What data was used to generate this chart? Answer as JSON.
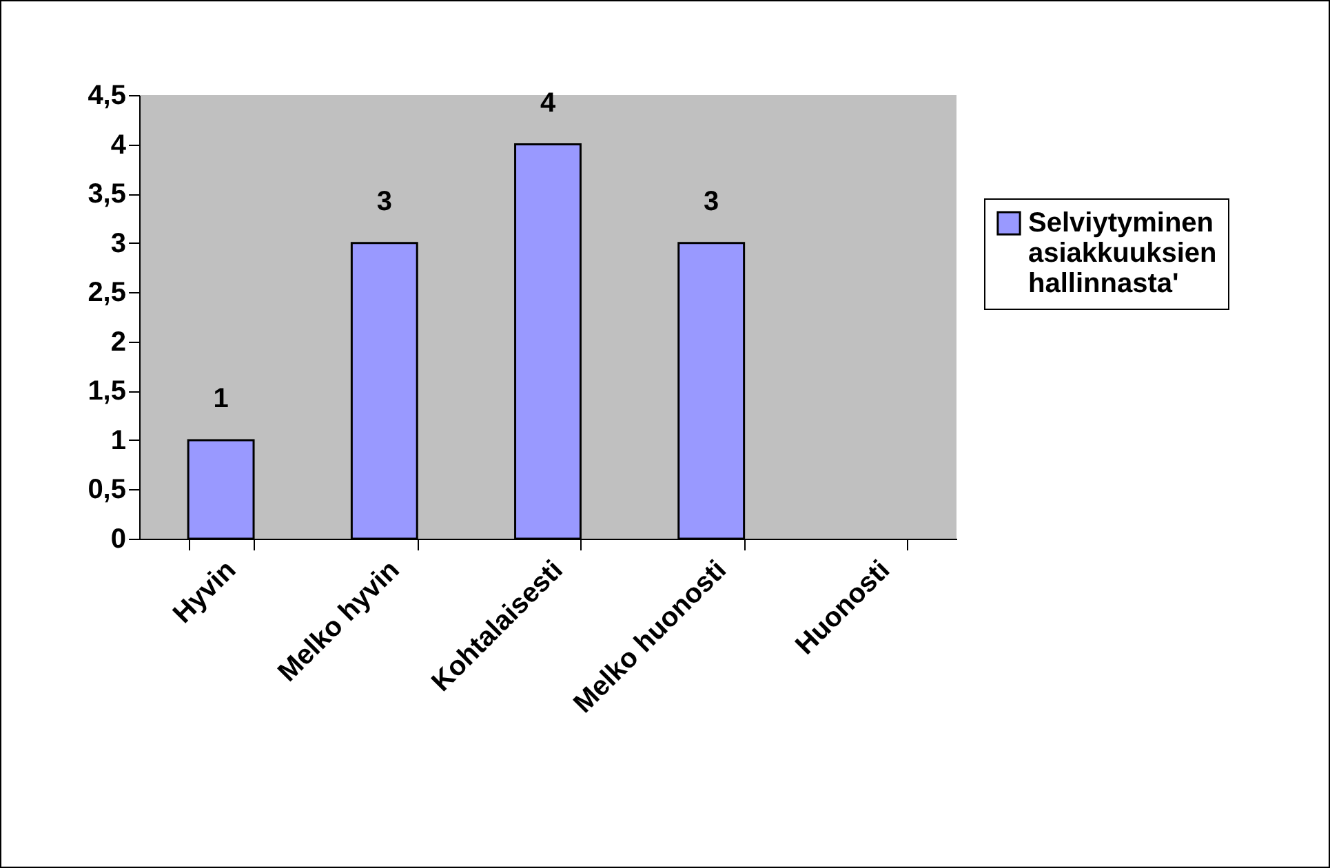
{
  "chart_data": {
    "type": "bar",
    "categories": [
      "Hyvin",
      "Melko hyvin",
      "Kohtalaisesti",
      "Melko huonosti",
      "Huonosti"
    ],
    "series": [
      {
        "name": "Selviytyminen asiakkuuksien hallinnasta'",
        "color": "#9999ff",
        "values": [
          1,
          3,
          4,
          3,
          null
        ],
        "value_labels": [
          "1",
          "3",
          "4",
          "3",
          null
        ]
      }
    ],
    "ylim": [
      0,
      4.5
    ],
    "yticks": [
      0,
      {
        "value": 0.5,
        "label": "0,5"
      },
      1,
      {
        "value": 1.5,
        "label": "1,5"
      },
      2,
      {
        "value": 2.5,
        "label": "2,5"
      },
      3,
      {
        "value": 3.5,
        "label": "3,5"
      },
      4,
      {
        "value": 4.5,
        "label": "4,5"
      }
    ],
    "legend": "right"
  }
}
